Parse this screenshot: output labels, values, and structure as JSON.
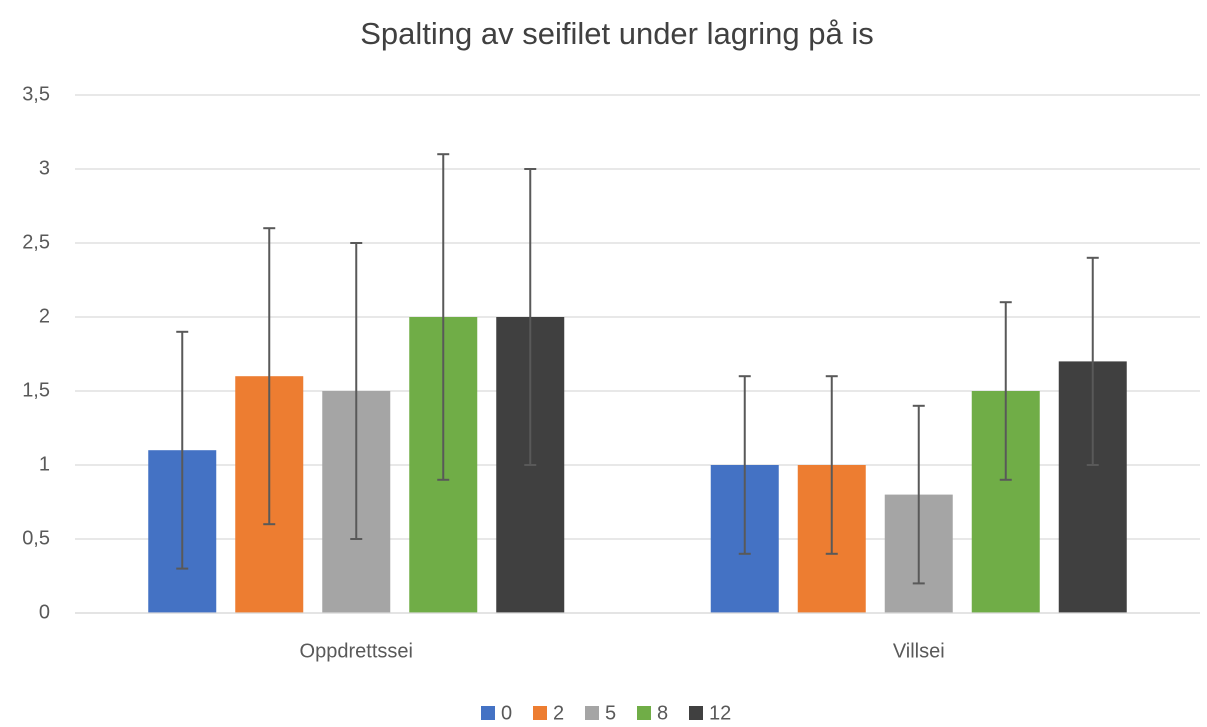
{
  "chart_data": {
    "type": "bar",
    "title": "Spalting av seifilet under lagring på is",
    "categories": [
      "Oppdrettssei",
      "Villsei"
    ],
    "series": [
      {
        "name": "0",
        "color": "#4472c4",
        "values": [
          1.1,
          1.0
        ],
        "errors": [
          0.8,
          0.6
        ]
      },
      {
        "name": "2",
        "color": "#ed7d31",
        "values": [
          1.6,
          1.0
        ],
        "errors": [
          1.0,
          0.6
        ]
      },
      {
        "name": "5",
        "color": "#a5a5a5",
        "values": [
          1.5,
          0.8
        ],
        "errors": [
          1.0,
          0.6
        ]
      },
      {
        "name": "8",
        "color": "#70ad47",
        "values": [
          2.0,
          1.5
        ],
        "errors": [
          1.1,
          0.6
        ]
      },
      {
        "name": "12",
        "color": "#404040",
        "values": [
          2.0,
          1.7
        ],
        "errors": [
          1.0,
          0.7
        ]
      }
    ],
    "ylim": [
      0,
      3.5
    ],
    "yticks": [
      0,
      {
        "value": 0.5,
        "label": "0,5"
      },
      1,
      {
        "value": 1.5,
        "label": "1,5"
      },
      2,
      {
        "value": 2.5,
        "label": "2,5"
      },
      3,
      {
        "value": 3.5,
        "label": "3,5"
      }
    ],
    "grid": true,
    "legend": "bottom"
  }
}
